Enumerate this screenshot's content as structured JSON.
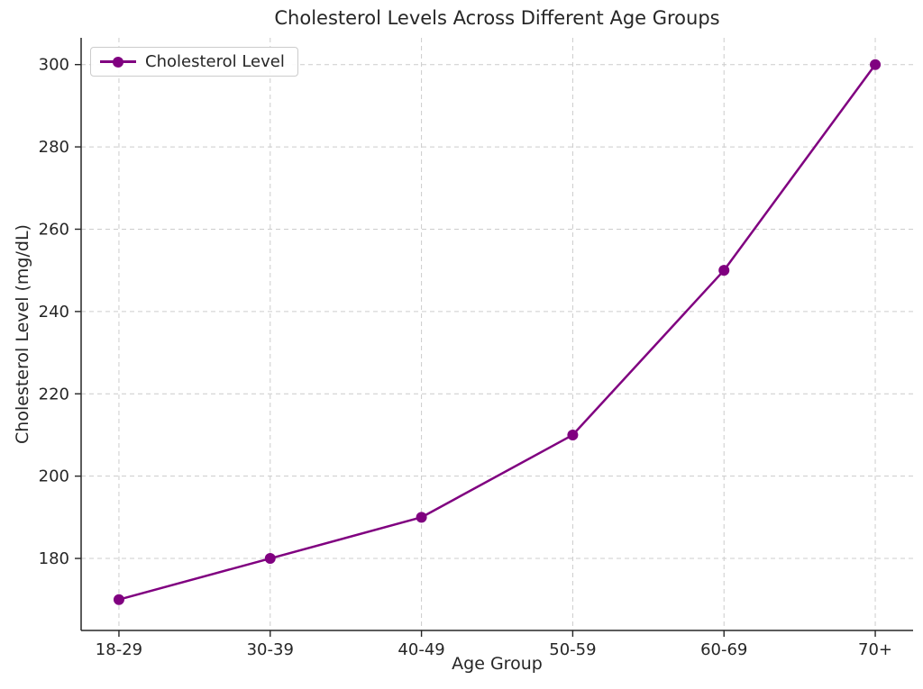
{
  "figure": {
    "background": "#ffffff"
  },
  "chart_data": {
    "type": "line",
    "title": "Cholesterol Levels Across Different Age Groups",
    "xlabel": "Age Group",
    "ylabel": "Cholesterol Level (mg/dL)",
    "categories": [
      "18-29",
      "30-39",
      "40-49",
      "50-59",
      "60-69",
      "70+"
    ],
    "series": [
      {
        "name": "Cholesterol Level",
        "values": [
          170,
          180,
          190,
          210,
          250,
          300
        ],
        "color": "#800080"
      }
    ],
    "yticks": [
      180,
      200,
      220,
      240,
      260,
      280,
      300
    ],
    "ylim": [
      162.5,
      306.5
    ],
    "grid": true,
    "grid_color": "#cccccc",
    "axis_color": "#262626",
    "text_color": "#262626",
    "legend_position": "upper left",
    "marker": "circle"
  }
}
